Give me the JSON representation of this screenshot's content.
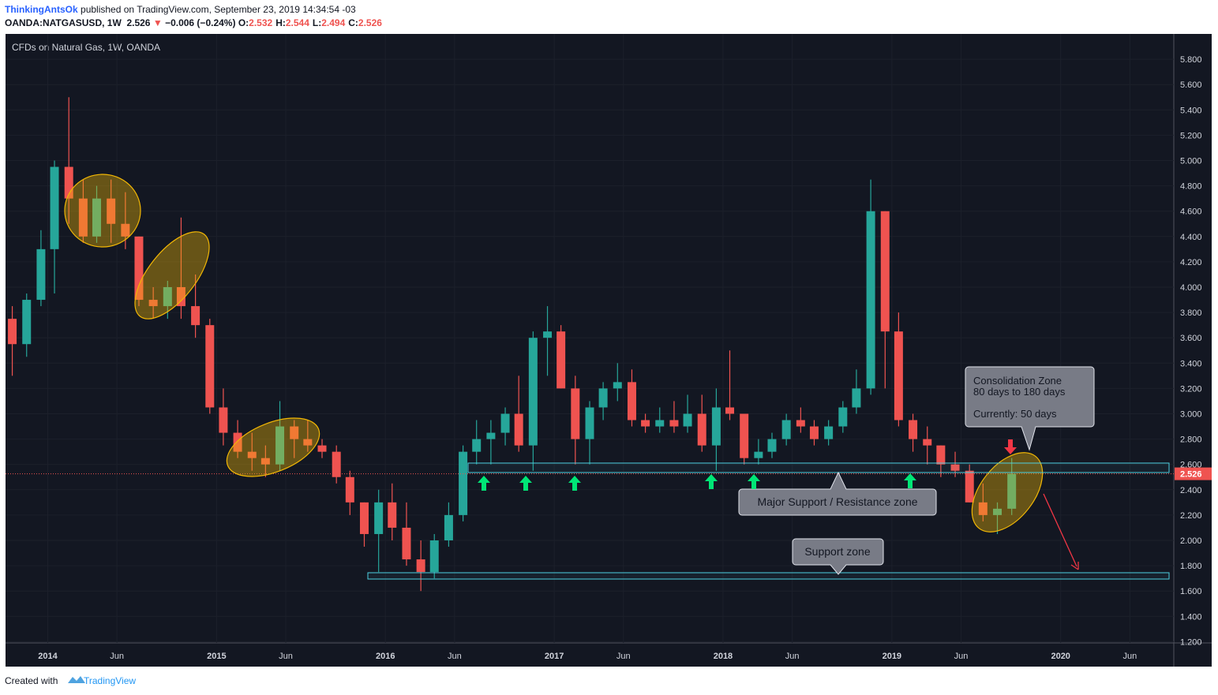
{
  "header": {
    "author": "ThinkingAntsOk",
    "published": "published on TradingView.com, September 23, 2019 14:34:54 -03",
    "symbol": "OANDA:NATGASUSD, 1W",
    "price": "2.526",
    "change_icon": "▼",
    "change": "−0.006 (−0.24%)",
    "ohlc": [
      {
        "label": "O:",
        "value": "2.532"
      },
      {
        "label": "H:",
        "value": "2.544"
      },
      {
        "label": "L:",
        "value": "2.494"
      },
      {
        "label": "C:",
        "value": "2.526"
      }
    ]
  },
  "footer": {
    "created": "Created with",
    "brand": "TradingView"
  },
  "chart_data": {
    "type": "candlestick",
    "title": "CFDs on Natural Gas, 1W, OANDA",
    "x": [
      2013.79,
      2013.875,
      2013.96,
      2014.04,
      2014.125,
      2014.21,
      2014.29,
      2014.375,
      2014.46,
      2014.54,
      2014.625,
      2014.71,
      2014.79,
      2014.875,
      2014.96,
      2015.04,
      2015.125,
      2015.21,
      2015.29,
      2015.375,
      2015.46,
      2015.54,
      2015.625,
      2015.71,
      2015.79,
      2015.875,
      2015.96,
      2016.04,
      2016.125,
      2016.21,
      2016.29,
      2016.375,
      2016.46,
      2016.54,
      2016.625,
      2016.71,
      2016.79,
      2016.875,
      2016.96,
      2017.04,
      2017.125,
      2017.21,
      2017.29,
      2017.375,
      2017.46,
      2017.54,
      2017.625,
      2017.71,
      2017.79,
      2017.875,
      2017.96,
      2018.04,
      2018.125,
      2018.21,
      2018.29,
      2018.375,
      2018.46,
      2018.54,
      2018.625,
      2018.71,
      2018.79,
      2018.875,
      2018.96,
      2019.04,
      2019.125,
      2019.21,
      2019.29,
      2019.375,
      2019.46,
      2019.54,
      2019.625,
      2019.71
    ],
    "open": [
      3.75,
      3.55,
      3.9,
      4.3,
      4.95,
      4.7,
      4.4,
      4.7,
      4.5,
      4.4,
      3.9,
      3.85,
      4.0,
      3.85,
      3.7,
      3.05,
      2.85,
      2.7,
      2.65,
      2.6,
      2.9,
      2.8,
      2.75,
      2.7,
      2.5,
      2.3,
      2.05,
      2.3,
      2.1,
      1.85,
      1.75,
      2.0,
      2.2,
      2.7,
      2.8,
      2.85,
      3.0,
      2.75,
      3.6,
      3.65,
      3.2,
      2.8,
      3.05,
      3.2,
      3.25,
      2.95,
      2.9,
      2.95,
      2.9,
      3.0,
      2.75,
      3.05,
      3.0,
      2.65,
      2.7,
      2.8,
      2.95,
      2.9,
      2.8,
      2.9,
      3.05,
      3.2,
      4.6,
      3.65,
      2.95,
      2.8,
      2.75,
      2.6,
      2.55,
      2.3,
      2.2,
      2.25
    ],
    "high": [
      3.85,
      3.95,
      4.45,
      5.0,
      5.5,
      4.85,
      4.8,
      4.85,
      4.75,
      4.4,
      4.0,
      4.05,
      4.55,
      4.1,
      3.75,
      3.2,
      2.95,
      2.85,
      2.75,
      3.1,
      2.95,
      2.95,
      2.8,
      2.75,
      2.55,
      2.3,
      2.4,
      2.45,
      2.3,
      2.0,
      2.05,
      2.3,
      2.75,
      2.95,
      2.95,
      3.05,
      3.3,
      3.65,
      3.85,
      3.7,
      3.3,
      3.1,
      3.25,
      3.4,
      3.35,
      3.0,
      3.05,
      3.1,
      3.15,
      3.15,
      3.2,
      3.5,
      3.0,
      2.8,
      2.85,
      3.0,
      3.05,
      2.95,
      2.95,
      3.1,
      3.35,
      4.85,
      4.6,
      3.8,
      3.0,
      2.9,
      2.75,
      2.7,
      2.6,
      2.45,
      2.3,
      2.65
    ],
    "low": [
      3.3,
      3.45,
      3.85,
      3.95,
      4.5,
      4.35,
      4.35,
      4.35,
      4.3,
      3.85,
      3.75,
      3.75,
      3.75,
      3.6,
      3.0,
      2.75,
      2.65,
      2.55,
      2.5,
      2.55,
      2.65,
      2.7,
      2.65,
      2.45,
      2.2,
      1.95,
      1.75,
      2.0,
      1.8,
      1.6,
      1.7,
      1.95,
      2.15,
      2.6,
      2.6,
      2.75,
      2.7,
      2.55,
      3.3,
      3.2,
      2.6,
      2.6,
      2.95,
      3.1,
      2.9,
      2.85,
      2.85,
      2.85,
      2.85,
      2.7,
      2.55,
      2.95,
      2.6,
      2.6,
      2.65,
      2.75,
      2.85,
      2.75,
      2.75,
      2.85,
      3.0,
      3.15,
      3.2,
      2.9,
      2.7,
      2.6,
      2.5,
      2.5,
      2.3,
      2.15,
      2.05,
      2.2
    ],
    "close": [
      3.55,
      3.9,
      4.3,
      4.95,
      4.7,
      4.4,
      4.7,
      4.5,
      4.4,
      3.9,
      3.85,
      4.0,
      3.85,
      3.7,
      3.05,
      2.85,
      2.7,
      2.65,
      2.6,
      2.9,
      2.8,
      2.75,
      2.7,
      2.5,
      2.3,
      2.05,
      2.3,
      2.1,
      1.85,
      1.75,
      2.0,
      2.2,
      2.7,
      2.8,
      2.85,
      3.0,
      2.75,
      3.6,
      3.65,
      3.2,
      2.8,
      3.05,
      3.2,
      3.25,
      2.95,
      2.9,
      2.95,
      2.9,
      3.0,
      2.75,
      3.05,
      3.0,
      2.65,
      2.7,
      2.8,
      2.95,
      2.9,
      2.8,
      2.9,
      3.05,
      3.2,
      4.6,
      3.65,
      2.95,
      2.8,
      2.75,
      2.6,
      2.55,
      2.3,
      2.2,
      2.25,
      2.526
    ],
    "up_color": "#26a69a",
    "down_color": "#ef5350",
    "last_price": 2.526,
    "xlim": [
      2013.75,
      2020.67
    ],
    "xticks": [
      2014,
      {
        "value": 2014.41,
        "label": "Jun"
      },
      2015,
      {
        "value": 2015.41,
        "label": "Jun"
      },
      2016,
      {
        "value": 2016.41,
        "label": "Jun"
      },
      2017,
      {
        "value": 2017.41,
        "label": "Jun"
      },
      2018,
      {
        "value": 2018.41,
        "label": "Jun"
      },
      2019,
      {
        "value": 2019.41,
        "label": "Jun"
      },
      2020,
      {
        "value": 2020.41,
        "label": "Jun"
      }
    ],
    "ylim": [
      1.19,
      6.0
    ],
    "yticks": [
      {
        "value": 1.2,
        "label": "1.200"
      },
      {
        "value": 1.4,
        "label": "1.400"
      },
      {
        "value": 1.6,
        "label": "1.600"
      },
      {
        "value": 1.8,
        "label": "1.800"
      },
      {
        "value": 2.0,
        "label": "2.000"
      },
      {
        "value": 2.2,
        "label": "2.200"
      },
      {
        "value": 2.4,
        "label": "2.400"
      },
      {
        "value": 2.6,
        "label": "2.600"
      },
      {
        "value": 2.8,
        "label": "2.800"
      },
      {
        "value": 3.0,
        "label": "3.000"
      },
      {
        "value": 3.2,
        "label": "3.200"
      },
      {
        "value": 3.4,
        "label": "3.400"
      },
      {
        "value": 3.6,
        "label": "3.600"
      },
      {
        "value": 3.8,
        "label": "3.800"
      },
      {
        "value": 4.0,
        "label": "4.000"
      },
      {
        "value": 4.2,
        "label": "4.200"
      },
      {
        "value": 4.4,
        "label": "4.400"
      },
      {
        "value": 4.6,
        "label": "4.600"
      },
      {
        "value": 4.8,
        "label": "4.800"
      },
      {
        "value": 5.0,
        "label": "5.000"
      },
      {
        "value": 5.2,
        "label": "5.200"
      },
      {
        "value": 5.4,
        "label": "5.400"
      },
      {
        "value": 5.6,
        "label": "5.600"
      },
      {
        "value": 5.8,
        "label": "5.800"
      }
    ],
    "grid": true,
    "annotations": {
      "major_zone": "Major Support / Resistance zone",
      "support_zone": "Support zone",
      "consolidation": [
        "Consolidation Zone",
        "80 days to 180 days",
        "Currently: 50 days"
      ]
    }
  }
}
